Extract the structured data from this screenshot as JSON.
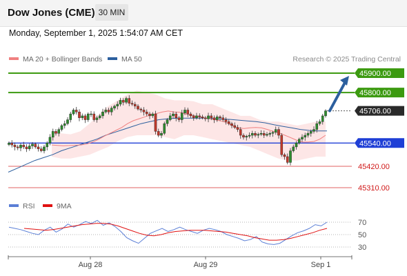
{
  "header": {
    "title": "Dow Jones (CME)",
    "timeframe": "30 MIN",
    "datetime": "Monday, September 1, 2025 1:54:07 AM CET"
  },
  "legend": {
    "items": [
      {
        "label": "MA 20 + Bollinger Bands",
        "color": "#f08080"
      },
      {
        "label": "MA 50",
        "color": "#2c5f9e"
      }
    ],
    "credit": "Research © 2025 Trading Central"
  },
  "rsi_legend": {
    "items": [
      {
        "label": "RSI",
        "color": "#5b7fd6"
      },
      {
        "label": "9MA",
        "color": "#e01010"
      }
    ]
  },
  "colors": {
    "up_candle": "#2e8b2e",
    "down_candle": "#c0392b",
    "bollinger_fill": "#fde3e3",
    "ma20": "#f08080",
    "ma50": "#2c5f9e",
    "resistance": "#3c9a10",
    "support_blue": "#1f3fd6",
    "support_red": "#e06060",
    "arrow": "#2c5f9e"
  },
  "chart_data": [
    {
      "type": "candlestick",
      "title": "Dow Jones (CME)",
      "x_ticks": [
        "Aug 28",
        "Aug 29",
        "Sep 1"
      ],
      "price_levels": [
        {
          "value": 45900.0,
          "label": "45900.00",
          "style": "resistance"
        },
        {
          "value": 45800.0,
          "label": "45800.00",
          "style": "resistance"
        },
        {
          "value": 45706.0,
          "label": "45706.00",
          "style": "current"
        },
        {
          "value": 45540.0,
          "label": "45540.00",
          "style": "pivot"
        },
        {
          "value": 45420.0,
          "label": "45420.00",
          "style": "support"
        },
        {
          "value": 45310.0,
          "label": "45310.00",
          "style": "support"
        }
      ],
      "closes": [
        45540,
        45530,
        45520,
        45515,
        45530,
        45520,
        45510,
        45525,
        45535,
        45520,
        45510,
        45500,
        45520,
        45540,
        45570,
        45600,
        45590,
        45610,
        45630,
        45640,
        45660,
        45690,
        45710,
        45700,
        45670,
        45680,
        45660,
        45690,
        45690,
        45660,
        45670,
        45680,
        45700,
        45710,
        45700,
        45720,
        45730,
        45740,
        45760,
        45750,
        45770,
        45745,
        45740,
        45730,
        45715,
        45710,
        45700,
        45690,
        45680,
        45690,
        45600,
        45580,
        45590,
        45640,
        45660,
        45680,
        45690,
        45670,
        45660,
        45695,
        45710,
        45690,
        45680,
        45670,
        45680,
        45675,
        45670,
        45665,
        45680,
        45670,
        45660,
        45675,
        45670,
        45660,
        45650,
        45640,
        45630,
        45620,
        45610,
        45580,
        45570,
        45575,
        45580,
        45590,
        45580,
        45585,
        45590,
        45580,
        45585,
        45590,
        45595,
        45610,
        45580,
        45480,
        45470,
        45440,
        45500,
        45520,
        45540,
        45560,
        45570,
        45580,
        45590,
        45600,
        45610,
        45640,
        45650,
        45680,
        45706
      ],
      "ma20": [
        45530,
        45528,
        45526,
        45527,
        45529,
        45530,
        45535,
        45545,
        45558,
        45575,
        45590,
        45605,
        45620,
        45640,
        45655,
        45665,
        45675,
        45685,
        45692,
        45700,
        45705,
        45700,
        45698,
        45690,
        45682,
        45676,
        45670,
        45666,
        45660,
        45654,
        45645,
        45630,
        45618,
        45615,
        45618,
        45620,
        45618,
        45610,
        45600,
        45592,
        45580,
        45568,
        45555,
        45545,
        45545,
        45548,
        45560,
        45580
      ],
      "ma50": [
        45390,
        45410,
        45430,
        45450,
        45465,
        45480,
        45500,
        45515,
        45530,
        45545,
        45560,
        45580,
        45595,
        45610,
        45625,
        45640,
        45650,
        45660,
        45665,
        45668,
        45668,
        45668,
        45668,
        45666,
        45664,
        45662,
        45658,
        45654,
        45650,
        45644,
        45634,
        45626,
        45618,
        45610,
        45605,
        45602,
        45602
      ],
      "bb_upper": [
        45600,
        45590,
        45585,
        45600,
        45640,
        45690,
        45730,
        45760,
        45790,
        45810,
        45800,
        45790,
        45770,
        45760,
        45760,
        45755,
        45740,
        45740,
        45720,
        45700,
        45680,
        45680,
        45660,
        45650,
        45650,
        45640,
        45630,
        45640,
        45650,
        45650
      ],
      "bb_lower": [
        45470,
        45460,
        45460,
        45470,
        45480,
        45500,
        45520,
        45550,
        45570,
        45580,
        45580,
        45580,
        45570,
        45560,
        45580,
        45580,
        45570,
        45560,
        45550,
        45540,
        45530,
        45520,
        45500,
        45480,
        45460,
        45450,
        45450,
        45460,
        45470,
        45470
      ],
      "forecast_target": 45900
    },
    {
      "type": "line",
      "title": "RSI",
      "series": [
        {
          "name": "RSI",
          "values": [
            62,
            60,
            58,
            55,
            52,
            50,
            57,
            62,
            54,
            59,
            67,
            62,
            66,
            71,
            68,
            73,
            65,
            69,
            63,
            55,
            45,
            40,
            36,
            44,
            52,
            56,
            60,
            55,
            58,
            62,
            58,
            55,
            52,
            57,
            60,
            58,
            55,
            50,
            47,
            44,
            40,
            42,
            47,
            38,
            35,
            34,
            36,
            42,
            48,
            53,
            56,
            60,
            66,
            64,
            70
          ]
        },
        {
          "name": "9MA",
          "values": [
            60,
            59,
            58,
            57,
            58,
            60,
            62,
            64,
            66,
            67,
            68,
            68,
            67,
            64,
            60,
            56,
            52,
            49,
            48,
            50,
            53,
            55,
            56,
            57,
            57,
            57,
            56,
            55,
            54,
            52,
            50,
            48,
            45,
            43,
            41,
            41,
            42,
            44,
            47,
            50,
            53,
            57,
            60
          ]
        }
      ],
      "y_ticks": [
        "70",
        "50",
        "30"
      ],
      "ylim": [
        20,
        80
      ]
    }
  ]
}
